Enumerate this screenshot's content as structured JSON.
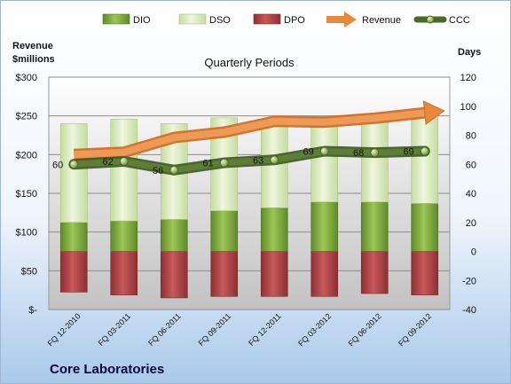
{
  "chart_data": {
    "type": "bar",
    "title": "Quarterly Periods",
    "company": "Core Laboratories",
    "left_axis": {
      "label_line1": "Revenue",
      "label_line2": "$millions",
      "ticks": [
        "$-",
        "$50",
        "$100",
        "$150",
        "$200",
        "$250",
        "$300"
      ],
      "range": [
        0,
        300
      ]
    },
    "right_axis": {
      "label": "Days",
      "ticks": [
        "-40",
        "-20",
        "0",
        "20",
        "40",
        "60",
        "80",
        "100",
        "120"
      ],
      "range": [
        -40,
        120
      ]
    },
    "categories": [
      "FQ 12-2010",
      "FQ 03-2011",
      "FQ 06-2011",
      "FQ 09-2011",
      "FQ 12-2011",
      "FQ 03-2012",
      "FQ 06-2012",
      "FQ 09-2012"
    ],
    "series": [
      {
        "name": "DIO",
        "axis": "days",
        "stack": "positive",
        "values": [
          20,
          21,
          22,
          28,
          30,
          34,
          34,
          33
        ],
        "color": "#77a33a"
      },
      {
        "name": "DSO",
        "axis": "days",
        "stack": "positive",
        "values": [
          68,
          70,
          66,
          64,
          61,
          59,
          59,
          64
        ],
        "color": "#d7e8b8"
      },
      {
        "name": "DPO",
        "axis": "days",
        "stack": "negative",
        "values": [
          -28,
          -30,
          -32,
          -31,
          -31,
          -31,
          -29,
          -30
        ],
        "color": "#b3484a"
      },
      {
        "name": "Revenue",
        "axis": "revenue",
        "type": "arrow",
        "values": [
          200,
          203,
          222,
          229,
          243,
          242,
          247,
          254
        ],
        "color": "#e8883a"
      },
      {
        "name": "CCC",
        "axis": "days",
        "type": "line",
        "values": [
          60,
          62,
          56,
          61,
          63,
          69,
          68,
          69
        ],
        "color": "#4e6e2c"
      }
    ],
    "legend": [
      "DIO",
      "DSO",
      "DPO",
      "Revenue",
      "CCC"
    ],
    "legend_position": "top"
  }
}
